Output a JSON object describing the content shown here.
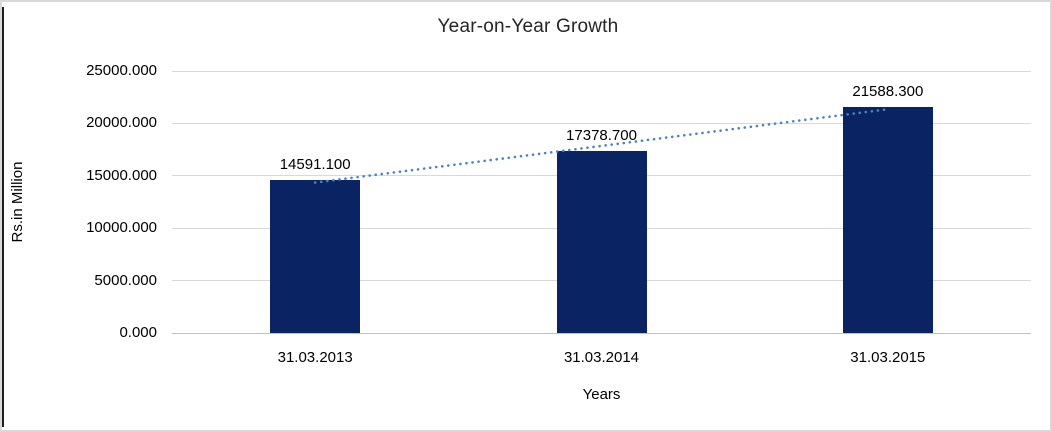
{
  "chart": {
    "title": "Year-on-Year Growth",
    "y_axis_title": "Rs.in Million",
    "x_axis_title": "Years"
  },
  "chart_data": {
    "type": "bar",
    "title": "Year-on-Year Growth",
    "categories": [
      "31.03.2013",
      "31.03.2014",
      "31.03.2015"
    ],
    "values": [
      14591.1,
      17378.7,
      21588.3
    ],
    "value_labels": [
      "14591.100",
      "17378.700",
      "21588.300"
    ],
    "xlabel": "Years",
    "ylabel": "Rs.in Million",
    "ylim": [
      0,
      25000
    ],
    "ytick_step": 5000,
    "ytick_labels": [
      "0.000",
      "5000.000",
      "10000.000",
      "15000.000",
      "20000.000",
      "25000.000"
    ],
    "grid": true,
    "legend": "none",
    "bar_color": "#0a2463",
    "gridline_color": "#d9d9d9",
    "trendline": {
      "type": "linear",
      "style": "dotted",
      "color": "#4f81bd"
    }
  }
}
